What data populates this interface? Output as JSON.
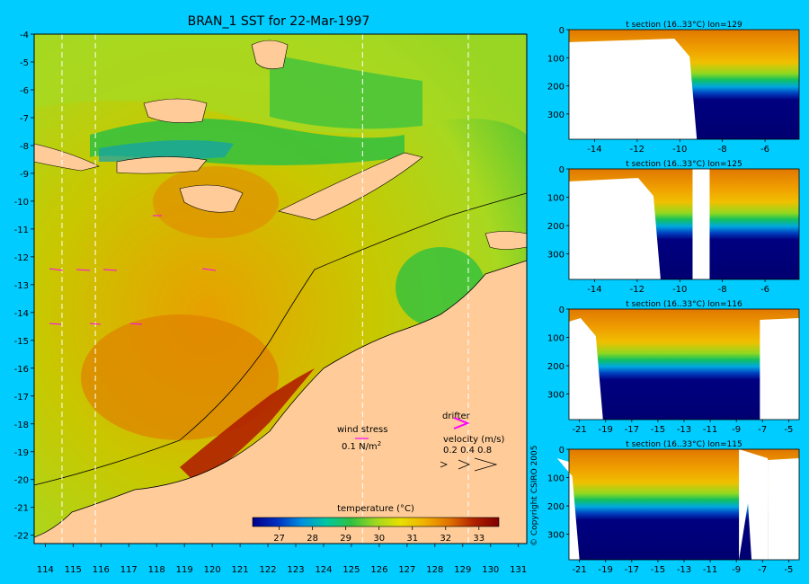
{
  "chart_data": [
    {
      "type": "heatmap",
      "title": "BRAN_1 SST for 22-Mar-1997",
      "x_ticks": [
        114,
        115,
        116,
        117,
        118,
        119,
        120,
        121,
        122,
        123,
        124,
        125,
        126,
        127,
        128,
        129,
        130,
        131
      ],
      "y_ticks": [
        -4,
        -5,
        -6,
        -7,
        -8,
        -9,
        -10,
        -11,
        -12,
        -13,
        -14,
        -15,
        -16,
        -17,
        -18,
        -19,
        -20,
        -21,
        -22
      ],
      "xlim": [
        113.6,
        131.3
      ],
      "ylim": [
        -22.3,
        -4
      ],
      "colorbar": {
        "title": "temperature (°C)",
        "ticks": [
          27,
          28,
          29,
          30,
          31,
          32,
          33
        ],
        "range": [
          26.2,
          33.6
        ],
        "colors": [
          "#00008b",
          "#0030c0",
          "#0090e0",
          "#00c8a0",
          "#30c040",
          "#a0d820",
          "#e8e000",
          "#f0b000",
          "#e07000",
          "#b02000",
          "#800000"
        ]
      },
      "legend": {
        "wind_label": "wind stress",
        "wind_scale": "0.1 N/m",
        "wind_scale_sup": "2",
        "drifter_label": "drifter",
        "velocity_label": "velocity (m/s)",
        "velocity_values": "0.2 0.4 0.8"
      },
      "colors": {
        "land": "#ffcc99",
        "sea_warm": "#e8a000",
        "sea_mid": "#a8d820",
        "sea_cool": "#28c040",
        "wind": "#ff00ff"
      }
    },
    {
      "type": "heatmap",
      "title": "t section (16..33°C) lon=129",
      "x_ticks": [
        -14,
        -12,
        -10,
        -8,
        -6
      ],
      "y_ticks": [
        0,
        100,
        200,
        300
      ],
      "xlim": [
        -15.2,
        -4.4
      ],
      "ylim": [
        390,
        0
      ]
    },
    {
      "type": "heatmap",
      "title": "t section (16..33°C) lon=125",
      "x_ticks": [
        -14,
        -12,
        -10,
        -8,
        -6
      ],
      "y_ticks": [
        0,
        100,
        200,
        300
      ],
      "xlim": [
        -15.2,
        -4.4
      ],
      "ylim": [
        390,
        0
      ]
    },
    {
      "type": "heatmap",
      "title": "t section (16..33°C) lon=116",
      "x_ticks": [
        -21,
        -19,
        -17,
        -15,
        -13,
        -11,
        -9,
        -7,
        -5
      ],
      "y_ticks": [
        0,
        100,
        200,
        300
      ],
      "xlim": [
        -21.8,
        -4.2
      ],
      "ylim": [
        390,
        0
      ]
    },
    {
      "type": "heatmap",
      "title": "t section (16..33°C) lon=115",
      "x_ticks": [
        -21,
        -19,
        -17,
        -15,
        -13,
        -11,
        -9,
        -7,
        -5
      ],
      "y_ticks": [
        0,
        100,
        200,
        300
      ],
      "xlim": [
        -21.8,
        -4.2
      ],
      "ylim": [
        390,
        0
      ]
    }
  ],
  "copyright": "© Copyright CSIRO 2005"
}
